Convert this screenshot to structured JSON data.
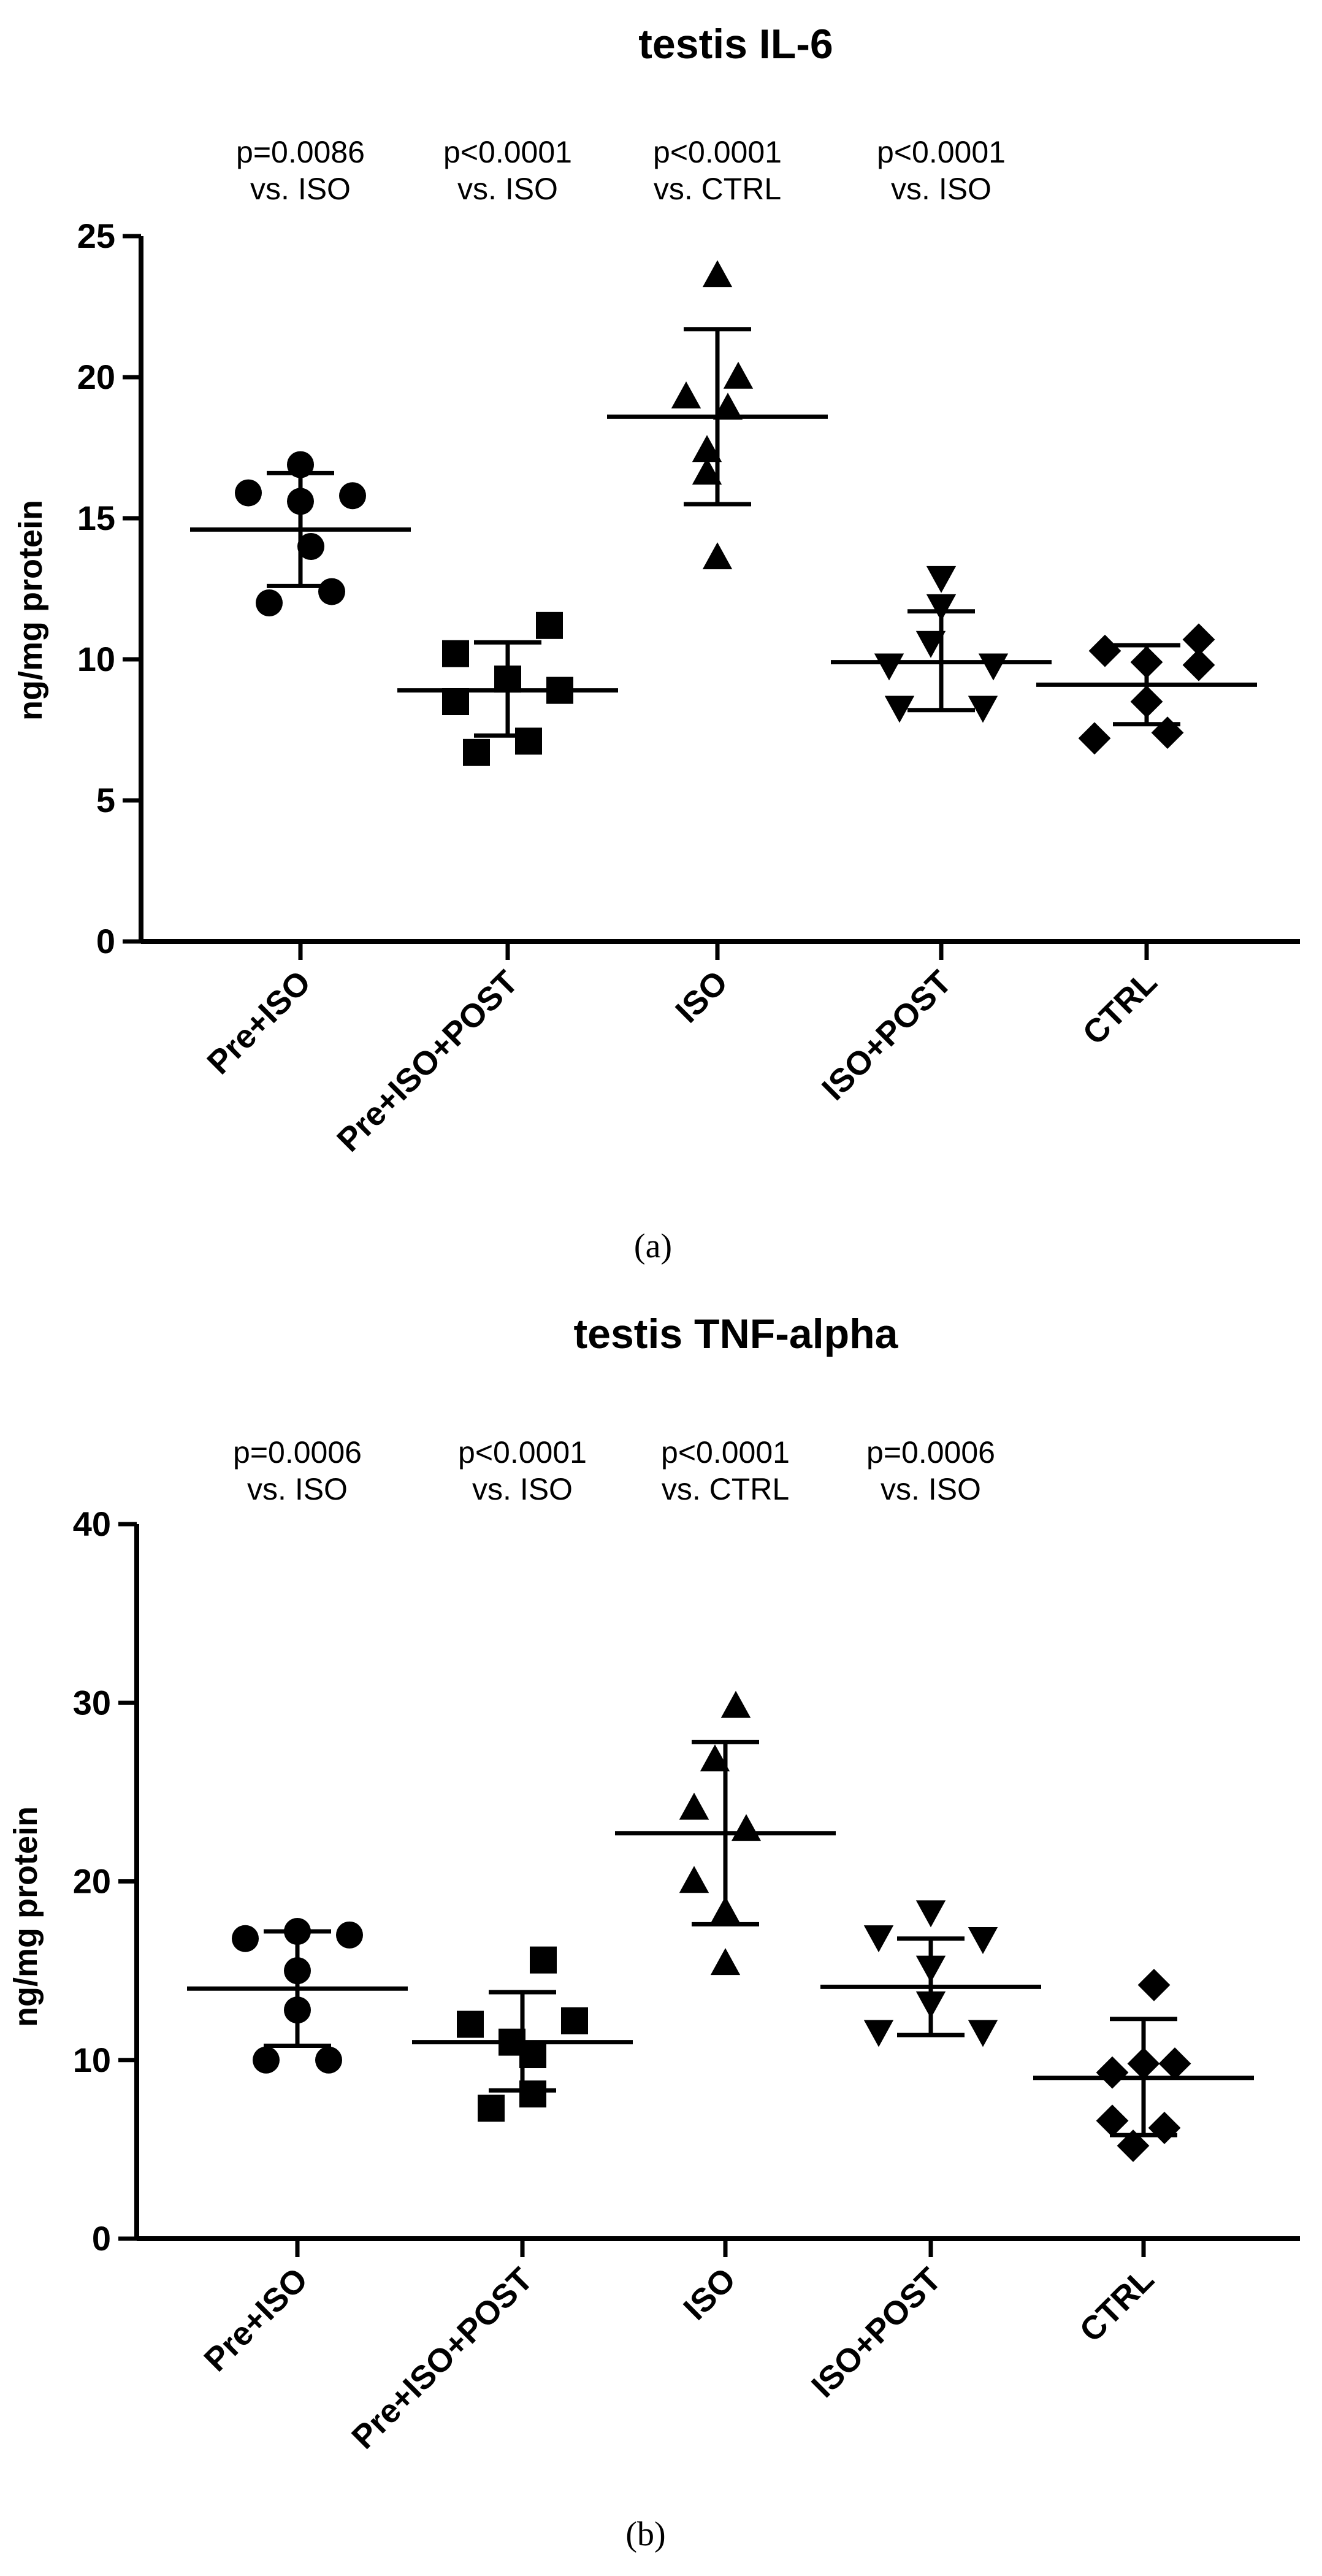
{
  "chart_data": [
    {
      "type": "scatter",
      "title": "testis IL-6",
      "panel_label": "(a)",
      "ylabel": "ng/mg protein",
      "xlabel": "",
      "ylim": [
        0,
        25
      ],
      "yticks": [
        0,
        5,
        10,
        15,
        20,
        25
      ],
      "categories": [
        "Pre+ISO",
        "Pre+ISO+POST",
        "ISO",
        "ISO+POST",
        "CTRL"
      ],
      "markers": [
        "circle",
        "square",
        "triangle-up",
        "triangle-down",
        "diamond"
      ],
      "annotations": [
        {
          "line1": "p=0.0086",
          "line2": "vs. ISO"
        },
        {
          "line1": "p<0.0001",
          "line2": "vs. ISO"
        },
        {
          "line1": "p<0.0001",
          "line2": "vs. CTRL"
        },
        {
          "line1": "p<0.0001",
          "line2": "vs. ISO"
        }
      ],
      "series": [
        {
          "name": "Pre+ISO",
          "mean": 14.6,
          "sd_low": 12.6,
          "sd_high": 16.6,
          "points": [
            [
              -0.25,
              15.9
            ],
            [
              0.0,
              16.9
            ],
            [
              0.25,
              15.8
            ],
            [
              -0.15,
              12.0
            ],
            [
              0.0,
              15.6
            ],
            [
              0.15,
              12.4
            ],
            [
              0.05,
              14.0
            ]
          ]
        },
        {
          "name": "Pre+ISO+POST",
          "mean": 8.9,
          "sd_low": 7.3,
          "sd_high": 10.6,
          "points": [
            [
              -0.25,
              10.2
            ],
            [
              0.0,
              9.3
            ],
            [
              0.2,
              11.2
            ],
            [
              0.25,
              8.9
            ],
            [
              -0.15,
              6.7
            ],
            [
              0.1,
              7.1
            ],
            [
              -0.25,
              8.5
            ]
          ]
        },
        {
          "name": "ISO",
          "mean": 18.6,
          "sd_low": 15.5,
          "sd_high": 21.7,
          "points": [
            [
              0.0,
              23.6
            ],
            [
              -0.15,
              19.3
            ],
            [
              0.1,
              20.0
            ],
            [
              0.05,
              18.9
            ],
            [
              -0.05,
              17.4
            ],
            [
              -0.05,
              16.6
            ],
            [
              0.0,
              13.6
            ]
          ]
        },
        {
          "name": "ISO+POST",
          "mean": 9.9,
          "sd_low": 8.2,
          "sd_high": 11.7,
          "points": [
            [
              0.0,
              12.9
            ],
            [
              0.0,
              11.9
            ],
            [
              -0.05,
              10.6
            ],
            [
              -0.25,
              9.8
            ],
            [
              0.25,
              9.8
            ],
            [
              -0.2,
              8.3
            ],
            [
              0.2,
              8.3
            ]
          ]
        },
        {
          "name": "CTRL",
          "mean": 9.1,
          "sd_low": 7.7,
          "sd_high": 10.5,
          "points": [
            [
              -0.2,
              10.3
            ],
            [
              0.25,
              10.7
            ],
            [
              0.0,
              9.9
            ],
            [
              0.25,
              9.8
            ],
            [
              -0.25,
              7.2
            ],
            [
              0.1,
              7.4
            ],
            [
              0.0,
              8.5
            ]
          ]
        }
      ]
    },
    {
      "type": "scatter",
      "title": "testis TNF-alpha",
      "panel_label": "(b)",
      "ylabel": "ng/mg protein",
      "xlabel": "",
      "ylim": [
        0,
        40
      ],
      "yticks": [
        0,
        10,
        20,
        30,
        40
      ],
      "categories": [
        "Pre+ISO",
        "Pre+ISO+POST",
        "ISO",
        "ISO+POST",
        "CTRL"
      ],
      "markers": [
        "circle",
        "square",
        "triangle-up",
        "triangle-down",
        "diamond"
      ],
      "annotations": [
        {
          "line1": "p=0.0006",
          "line2": "vs. ISO"
        },
        {
          "line1": "p<0.0001",
          "line2": "vs. ISO"
        },
        {
          "line1": "p<0.0001",
          "line2": "vs. CTRL"
        },
        {
          "line1": "p=0.0006",
          "line2": "vs. ISO"
        }
      ],
      "series": [
        {
          "name": "Pre+ISO",
          "mean": 14.0,
          "sd_low": 10.8,
          "sd_high": 17.2,
          "points": [
            [
              -0.25,
              16.8
            ],
            [
              0.0,
              17.2
            ],
            [
              0.25,
              17.0
            ],
            [
              0.0,
              15.0
            ],
            [
              0.0,
              12.8
            ],
            [
              -0.15,
              10.0
            ],
            [
              0.15,
              10.0
            ]
          ]
        },
        {
          "name": "Pre+ISO+POST",
          "mean": 11.0,
          "sd_low": 8.3,
          "sd_high": 13.8,
          "points": [
            [
              0.1,
              15.6
            ],
            [
              -0.25,
              12.0
            ],
            [
              0.25,
              12.2
            ],
            [
              -0.05,
              11.0
            ],
            [
              0.05,
              10.3
            ],
            [
              -0.15,
              7.3
            ],
            [
              0.05,
              8.1
            ]
          ]
        },
        {
          "name": "ISO",
          "mean": 22.7,
          "sd_low": 17.6,
          "sd_high": 27.8,
          "points": [
            [
              0.05,
              29.8
            ],
            [
              -0.05,
              26.8
            ],
            [
              -0.15,
              24.1
            ],
            [
              0.1,
              22.9
            ],
            [
              -0.15,
              20.0
            ],
            [
              0.0,
              18.3
            ],
            [
              0.0,
              15.4
            ]
          ]
        },
        {
          "name": "ISO+POST",
          "mean": 14.1,
          "sd_low": 11.4,
          "sd_high": 16.8,
          "points": [
            [
              0.0,
              18.3
            ],
            [
              -0.25,
              16.9
            ],
            [
              0.25,
              16.8
            ],
            [
              0.0,
              15.2
            ],
            [
              0.0,
              13.2
            ],
            [
              -0.25,
              11.6
            ],
            [
              0.25,
              11.6
            ]
          ]
        },
        {
          "name": "CTRL",
          "mean": 9.0,
          "sd_low": 5.8,
          "sd_high": 12.3,
          "points": [
            [
              0.05,
              14.2
            ],
            [
              0.0,
              9.8
            ],
            [
              -0.15,
              9.3
            ],
            [
              0.15,
              9.8
            ],
            [
              -0.15,
              6.6
            ],
            [
              0.1,
              6.2
            ],
            [
              -0.05,
              5.2
            ]
          ]
        }
      ]
    }
  ]
}
